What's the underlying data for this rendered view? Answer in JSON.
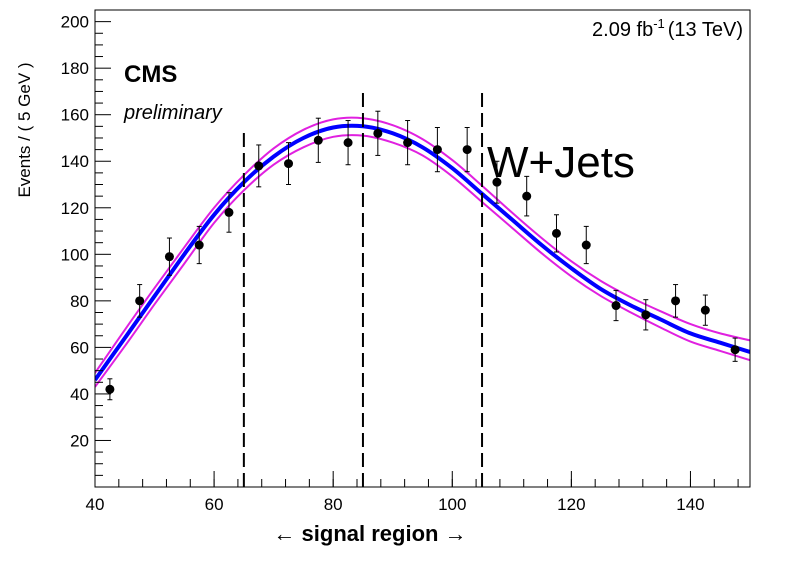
{
  "chart_data": {
    "type": "scatter",
    "lumi_label": {
      "value": "2.09 fb",
      "superscript": "-1",
      "energy": "(13 TeV)"
    },
    "experiment": "CMS",
    "status": "preliminary",
    "annotation": "W+Jets",
    "xlabel": "← signal region →",
    "ylabel": "Events / ( 5 GeV )",
    "xlim": [
      40,
      150
    ],
    "ylim": [
      0,
      205
    ],
    "x_ticks": [
      "40",
      "60",
      "80",
      "100",
      "120",
      "140"
    ],
    "y_ticks": [
      "20",
      "40",
      "60",
      "80",
      "100",
      "120",
      "140",
      "160",
      "180",
      "200"
    ],
    "x_tick_values": [
      40,
      60,
      80,
      100,
      120,
      140
    ],
    "y_tick_values": [
      20,
      40,
      60,
      80,
      100,
      120,
      140,
      160,
      180,
      200
    ],
    "grid": false,
    "points": [
      {
        "x": 42.5,
        "y": 42,
        "err": 4.5
      },
      {
        "x": 47.5,
        "y": 80,
        "err": 7
      },
      {
        "x": 52.5,
        "y": 99,
        "err": 8
      },
      {
        "x": 57.5,
        "y": 104,
        "err": 8
      },
      {
        "x": 62.5,
        "y": 118,
        "err": 8.5
      },
      {
        "x": 67.5,
        "y": 138,
        "err": 9
      },
      {
        "x": 72.5,
        "y": 139,
        "err": 9
      },
      {
        "x": 77.5,
        "y": 149,
        "err": 9.5
      },
      {
        "x": 82.5,
        "y": 148,
        "err": 9.5
      },
      {
        "x": 87.5,
        "y": 152,
        "err": 9.5
      },
      {
        "x": 92.5,
        "y": 148,
        "err": 9.5
      },
      {
        "x": 97.5,
        "y": 145,
        "err": 9.5
      },
      {
        "x": 102.5,
        "y": 145,
        "err": 9.5
      },
      {
        "x": 107.5,
        "y": 131,
        "err": 9
      },
      {
        "x": 112.5,
        "y": 125,
        "err": 8.5
      },
      {
        "x": 117.5,
        "y": 109,
        "err": 8
      },
      {
        "x": 122.5,
        "y": 104,
        "err": 8
      },
      {
        "x": 127.5,
        "y": 78,
        "err": 6.5
      },
      {
        "x": 132.5,
        "y": 74,
        "err": 6.5
      },
      {
        "x": 137.5,
        "y": 80,
        "err": 7
      },
      {
        "x": 142.5,
        "y": 76,
        "err": 6.5
      },
      {
        "x": 147.5,
        "y": 59,
        "err": 5
      }
    ],
    "fit": {
      "color": "#0000ff",
      "x": [
        40,
        45,
        50,
        55,
        60,
        65,
        70,
        75,
        80,
        85,
        90,
        95,
        100,
        105,
        110,
        115,
        120,
        125,
        130,
        135,
        140,
        145,
        150
      ],
      "y": [
        46,
        64,
        82,
        100,
        117,
        131,
        142,
        150,
        154.5,
        155,
        152,
        146,
        137,
        126,
        115,
        104,
        94,
        85,
        78,
        72,
        66,
        62,
        58
      ]
    },
    "band": {
      "color": "#e020e0",
      "x": [
        40,
        45,
        50,
        55,
        60,
        65,
        70,
        75,
        80,
        85,
        90,
        95,
        100,
        105,
        110,
        115,
        120,
        125,
        130,
        135,
        140,
        145,
        150
      ],
      "upper": [
        49,
        67.5,
        85.5,
        103,
        120,
        134,
        145.5,
        153.5,
        158,
        158.5,
        155.5,
        149.5,
        140.5,
        129.5,
        118,
        107,
        97,
        88.5,
        81.5,
        75.5,
        70,
        66,
        63
      ],
      "lower": [
        43,
        60.5,
        78.5,
        96,
        113.5,
        127.5,
        138.5,
        146,
        150.5,
        151,
        148,
        142.5,
        133.5,
        122.5,
        111.5,
        100.5,
        90.5,
        82,
        75,
        68.5,
        62.5,
        58.5,
        54.5
      ]
    },
    "region_boundaries": [
      65,
      85,
      105
    ]
  }
}
